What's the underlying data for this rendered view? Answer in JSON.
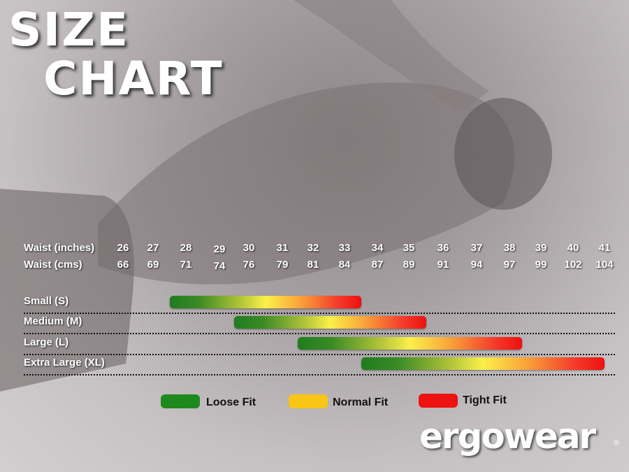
{
  "title_line1": "SIZE",
  "title_line2": "CHART",
  "colors": {
    "loose": "#1e8a1e",
    "normal": "#f9c516",
    "tight": "#ee1212"
  },
  "chart_data": {
    "type": "range-bar",
    "row_labels": [
      "Waist (inches)",
      "Waist (cms)"
    ],
    "waist_inches": [
      "26",
      "27",
      "28",
      "29",
      "30",
      "31",
      "32",
      "33",
      "34",
      "35",
      "36",
      "37",
      "38",
      "39",
      "40",
      "41"
    ],
    "waist_cms": [
      "66",
      "69",
      "71",
      "74",
      "76",
      "79",
      "81",
      "84",
      "87",
      "89",
      "91",
      "94",
      "97",
      "99",
      "102",
      "104"
    ],
    "sizes": [
      {
        "label": "Small (S)",
        "start_in": 27.5,
        "end_in": 33.5
      },
      {
        "label": "Medium (M)",
        "start_in": 29.5,
        "end_in": 35.5
      },
      {
        "label": "Large (L)",
        "start_in": 31.5,
        "end_in": 38.4
      },
      {
        "label": "Extra Large (XL)",
        "start_in": 33.5,
        "end_in": 41.3
      }
    ],
    "legend": [
      {
        "label": "Loose Fit",
        "color": "#1e8a1e"
      },
      {
        "label": "Normal Fit",
        "color": "#f9c516"
      },
      {
        "label": "Tight Fit",
        "color": "#ee1212"
      }
    ]
  },
  "logo": {
    "text": "ergowear",
    "reg": "®"
  }
}
